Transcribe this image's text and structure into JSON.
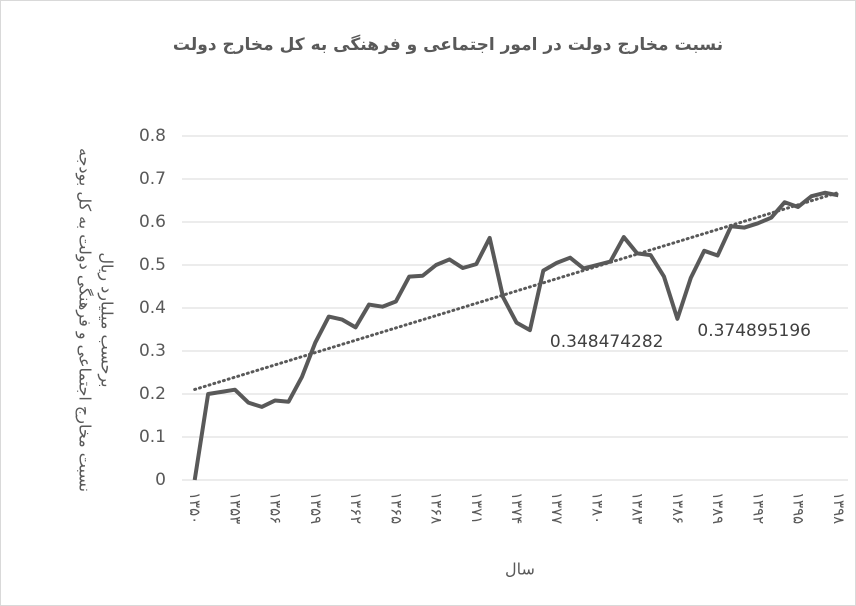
{
  "chart_data": {
    "type": "line",
    "title": "نسبت مخارج دولت در امور اجتماعی و فرهنگی به کل مخارج دولت",
    "y_label": [
      "نسبت مخارج اجتماعی و فرهنگی دولت به کل بودجه",
      "برحسب میلیارد ریال"
    ],
    "x_label": "سال",
    "categories": [
      "۱۳۵۰",
      null,
      null,
      "۱۳۵۳",
      null,
      null,
      "۱۳۵۶",
      null,
      null,
      "۱۳۵۹",
      null,
      null,
      "۱۳۶۲",
      null,
      null,
      "۱۳۶۵",
      null,
      null,
      "۱۳۶۸",
      null,
      null,
      "۱۳۷۱",
      null,
      null,
      "۱۳۷۴",
      null,
      null,
      "۱۳۷۷",
      null,
      null,
      "۱۳۸۰",
      null,
      null,
      "۱۳۸۳",
      null,
      null,
      "۱۳۸۶",
      null,
      null,
      "۱۳۸۹",
      null,
      null,
      "۱۳۹۲",
      null,
      null,
      "۱۳۹۵",
      null,
      null,
      "۱۳۹۸"
    ],
    "values": [
      0,
      0.2,
      0.205,
      0.21,
      0.18,
      0.17,
      0.185,
      0.182,
      0.24,
      0.32,
      0.38,
      0.373,
      0.355,
      0.408,
      0.403,
      0.415,
      0.473,
      0.475,
      0.5,
      0.513,
      0.493,
      0.502,
      0.563,
      0.425,
      0.366,
      0.348474282,
      0.487,
      0.505,
      0.517,
      0.492,
      0.5,
      0.508,
      0.565,
      0.527,
      0.523,
      0.473,
      0.374895196,
      0.47,
      0.533,
      0.522,
      0.59,
      0.587,
      0.597,
      0.61,
      0.646,
      0.635,
      0.66,
      0.668,
      0.662
    ],
    "value_labels": [
      null,
      null,
      null,
      null,
      null,
      null,
      null,
      null,
      null,
      null,
      null,
      null,
      null,
      null,
      null,
      null,
      null,
      null,
      null,
      null,
      null,
      null,
      null,
      null,
      null,
      "0.348474282",
      null,
      null,
      null,
      null,
      null,
      null,
      null,
      null,
      null,
      null,
      "0.374895196",
      null,
      null,
      null,
      null,
      null,
      null,
      null,
      null,
      null,
      null,
      null,
      null
    ],
    "color": "#595959",
    "trendline": "linear",
    "trendline_color": "#595959",
    "ylim": [
      0,
      0.8
    ],
    "yticks": [
      0,
      0.1,
      0.2,
      0.3,
      0.4,
      0.5,
      0.6,
      0.7,
      0.8
    ],
    "grid": true
  }
}
